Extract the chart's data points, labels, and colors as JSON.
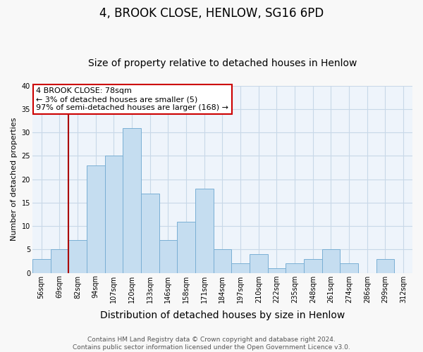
{
  "title": "4, BROOK CLOSE, HENLOW, SG16 6PD",
  "subtitle": "Size of property relative to detached houses in Henlow",
  "xlabel": "Distribution of detached houses by size in Henlow",
  "ylabel": "Number of detached properties",
  "bin_labels": [
    "56sqm",
    "69sqm",
    "82sqm",
    "94sqm",
    "107sqm",
    "120sqm",
    "133sqm",
    "146sqm",
    "158sqm",
    "171sqm",
    "184sqm",
    "197sqm",
    "210sqm",
    "222sqm",
    "235sqm",
    "248sqm",
    "261sqm",
    "274sqm",
    "286sqm",
    "299sqm",
    "312sqm"
  ],
  "bar_values": [
    3,
    5,
    7,
    23,
    25,
    31,
    17,
    7,
    11,
    18,
    5,
    2,
    4,
    1,
    2,
    3,
    5,
    2,
    0,
    3,
    0
  ],
  "bar_color": "#c5ddf0",
  "bar_edge_color": "#7aafd4",
  "subject_line_color": "#aa0000",
  "annotation_text": "4 BROOK CLOSE: 78sqm\n← 3% of detached houses are smaller (5)\n97% of semi-detached houses are larger (168) →",
  "annotation_box_color": "#ffffff",
  "annotation_box_edge_color": "#cc0000",
  "ylim": [
    0,
    40
  ],
  "yticks": [
    0,
    5,
    10,
    15,
    20,
    25,
    30,
    35,
    40
  ],
  "footer_line1": "Contains HM Land Registry data © Crown copyright and database right 2024.",
  "footer_line2": "Contains public sector information licensed under the Open Government Licence v3.0.",
  "plot_bg_color": "#eef4fb",
  "fig_bg_color": "#f8f8f8",
  "grid_color": "#c8d8e8",
  "title_fontsize": 12,
  "subtitle_fontsize": 10,
  "xlabel_fontsize": 10,
  "ylabel_fontsize": 8,
  "tick_fontsize": 7,
  "annotation_fontsize": 8,
  "footer_fontsize": 6.5
}
